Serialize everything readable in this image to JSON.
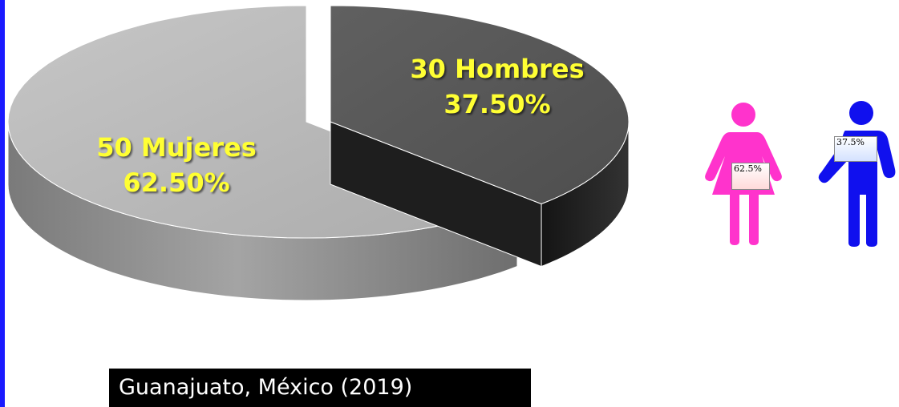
{
  "chart_data": {
    "type": "pie",
    "style": "3d-exploded",
    "slices": [
      {
        "name": "Mujeres",
        "count": 50,
        "percent": 62.5,
        "count_label": "50 Mujeres",
        "percent_label": "62.50%",
        "color": "#b8b8b8"
      },
      {
        "name": "Hombres",
        "count": 30,
        "percent": 37.5,
        "count_label": "30 Hombres",
        "percent_label": "37.50%",
        "color": "#5a5a5a"
      }
    ],
    "label_color": "#ffff33",
    "legend": "none"
  },
  "figures": {
    "woman": {
      "percent_label": "62.5%",
      "color": "#ff33cc",
      "icon": "woman-icon"
    },
    "man": {
      "percent_label": "37.5%",
      "color": "#1010ee",
      "icon": "man-icon"
    }
  },
  "footer": {
    "location": "Guanajuato, México (2019)"
  },
  "colors": {
    "left_border": "#1a1aff",
    "footer_bg": "#000000",
    "footer_text": "#ffffff"
  }
}
